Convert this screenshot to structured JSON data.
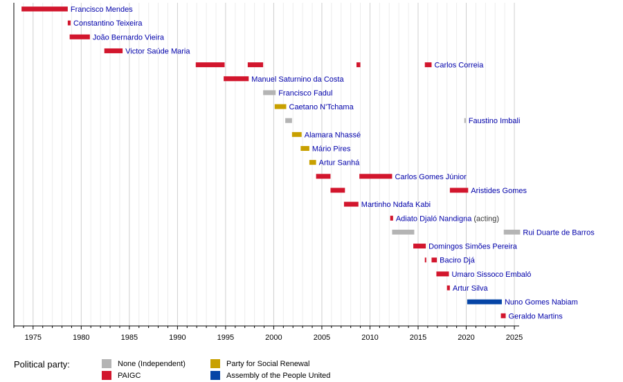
{
  "chart_data": {
    "type": "timeline",
    "title": "",
    "xlim": [
      1973,
      2025.5
    ],
    "x_ticks": [
      "1975",
      "1980",
      "1985",
      "1990",
      "1995",
      "2000",
      "2005",
      "2010",
      "2015",
      "2020",
      "2025"
    ],
    "grid": true,
    "parties": {
      "none": {
        "label": "None (Independent)",
        "color": "#b4b4b4"
      },
      "prs": {
        "label": "Party for Social Renewal",
        "color": "#c8a000"
      },
      "paigc": {
        "label": "PAIGC",
        "color": "#d2162d"
      },
      "apu": {
        "label": "Assembly of the People United",
        "color": "#0645a6"
      }
    },
    "rows": [
      {
        "name": "Francisco Mendes",
        "note": "",
        "terms": [
          {
            "start": 1973.8,
            "end": 1978.6,
            "party": "paigc"
          }
        ]
      },
      {
        "name": "Constantino Teixeira",
        "note": "",
        "terms": [
          {
            "start": 1978.6,
            "end": 1978.9,
            "party": "paigc"
          }
        ]
      },
      {
        "name": "João Bernardo Vieira",
        "note": "",
        "terms": [
          {
            "start": 1978.8,
            "end": 1980.9,
            "party": "paigc"
          }
        ]
      },
      {
        "name": "Victor Saúde Maria",
        "note": "",
        "terms": [
          {
            "start": 1982.4,
            "end": 1984.3,
            "party": "paigc"
          }
        ]
      },
      {
        "name": "Carlos Correia",
        "note": "",
        "terms": [
          {
            "start": 1991.9,
            "end": 1994.9,
            "party": "paigc"
          },
          {
            "start": 1997.3,
            "end": 1998.9,
            "party": "paigc"
          },
          {
            "start": 2008.6,
            "end": 2009.0,
            "party": "paigc"
          },
          {
            "start": 2015.7,
            "end": 2016.4,
            "party": "paigc"
          }
        ]
      },
      {
        "name": "Manuel Saturnino da Costa",
        "note": "",
        "terms": [
          {
            "start": 1994.8,
            "end": 1997.4,
            "party": "paigc"
          }
        ]
      },
      {
        "name": "Francisco Fadul",
        "note": "",
        "terms": [
          {
            "start": 1998.9,
            "end": 2000.2,
            "party": "none"
          }
        ]
      },
      {
        "name": "Caetano N'Tchama",
        "note": "",
        "terms": [
          {
            "start": 2000.1,
            "end": 2001.3,
            "party": "prs"
          }
        ]
      },
      {
        "name": "Faustino Imbali",
        "note": "",
        "terms": [
          {
            "start": 2001.2,
            "end": 2001.9,
            "party": "none"
          },
          {
            "start": 2019.8,
            "end": 2019.95,
            "party": "none"
          }
        ]
      },
      {
        "name": "Alamara Nhassé",
        "note": "",
        "terms": [
          {
            "start": 2001.9,
            "end": 2002.9,
            "party": "prs"
          }
        ]
      },
      {
        "name": "Mário Pires",
        "note": "",
        "terms": [
          {
            "start": 2002.8,
            "end": 2003.7,
            "party": "prs"
          }
        ]
      },
      {
        "name": "Artur Sanhá",
        "note": "",
        "terms": [
          {
            "start": 2003.7,
            "end": 2004.4,
            "party": "prs"
          }
        ]
      },
      {
        "name": "Carlos Gomes Júnior",
        "note": "",
        "terms": [
          {
            "start": 2004.4,
            "end": 2005.9,
            "party": "paigc"
          },
          {
            "start": 2008.9,
            "end": 2012.3,
            "party": "paigc"
          }
        ]
      },
      {
        "name": "Aristides Gomes",
        "note": "",
        "terms": [
          {
            "start": 2005.9,
            "end": 2007.4,
            "party": "paigc"
          },
          {
            "start": 2018.3,
            "end": 2020.2,
            "party": "paigc"
          }
        ]
      },
      {
        "name": "Martinho Ndafa Kabi",
        "note": "",
        "terms": [
          {
            "start": 2007.3,
            "end": 2008.8,
            "party": "paigc"
          }
        ]
      },
      {
        "name": "Adiato Djaló Nandigna",
        "note": "(acting)",
        "terms": [
          {
            "start": 2012.1,
            "end": 2012.4,
            "party": "paigc"
          }
        ]
      },
      {
        "name": "Rui Duarte de Barros",
        "note": "",
        "terms": [
          {
            "start": 2012.3,
            "end": 2014.6,
            "party": "none"
          },
          {
            "start": 2023.9,
            "end": 2025.6,
            "party": "none"
          }
        ]
      },
      {
        "name": "Domingos Simões Pereira",
        "note": "",
        "terms": [
          {
            "start": 2014.5,
            "end": 2015.8,
            "party": "paigc"
          }
        ]
      },
      {
        "name": "Baciro Djá",
        "note": "",
        "terms": [
          {
            "start": 2015.7,
            "end": 2015.85,
            "party": "paigc"
          },
          {
            "start": 2016.4,
            "end": 2016.95,
            "party": "paigc"
          }
        ]
      },
      {
        "name": "Umaro Sissoco Embaló",
        "note": "",
        "terms": [
          {
            "start": 2016.9,
            "end": 2018.2,
            "party": "paigc"
          }
        ]
      },
      {
        "name": "Artur Silva",
        "note": "",
        "terms": [
          {
            "start": 2018.0,
            "end": 2018.3,
            "party": "paigc"
          }
        ]
      },
      {
        "name": "Nuno Gomes Nabiam",
        "note": "",
        "terms": [
          {
            "start": 2020.1,
            "end": 2023.7,
            "party": "apu"
          }
        ]
      },
      {
        "name": "Geraldo Martins",
        "note": "",
        "terms": [
          {
            "start": 2023.6,
            "end": 2024.1,
            "party": "paigc"
          }
        ]
      }
    ]
  },
  "legend": {
    "title": "Political party:",
    "items": [
      {
        "key": "none",
        "label": "None (Independent)",
        "color": "#b4b4b4"
      },
      {
        "key": "paigc",
        "label": "PAIGC",
        "color": "#d2162d"
      },
      {
        "key": "prs",
        "label": "Party for Social Renewal",
        "color": "#c8a000"
      },
      {
        "key": "apu",
        "label": "Assembly of the People United",
        "color": "#0645a6"
      }
    ]
  }
}
